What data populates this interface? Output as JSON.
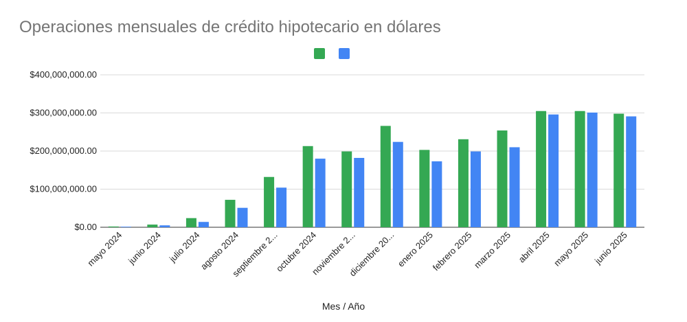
{
  "chart_data": {
    "type": "bar",
    "title": "Operaciones mensuales de crédito hipotecario en dólares",
    "xlabel": "Mes / Año",
    "ylabel": "",
    "ylim": [
      0,
      400000000
    ],
    "yticks": [
      0,
      100000000,
      200000000,
      300000000,
      400000000
    ],
    "ytick_labels": [
      "$0.00",
      "$100,000,000.00",
      "$200,000,000.00",
      "$300,000,000.00",
      "$400,000,000.00"
    ],
    "grid": true,
    "legend_position": "top-center",
    "categories": [
      "mayo 2024",
      "junio 2024",
      "julio 2024",
      "agosto 2024",
      "septiembre 2...",
      "octubre 2024",
      "noviembre 2...",
      "diciembre 20...",
      "enero 2025",
      "febrero 2025",
      "marzo 2025",
      "abril 2025",
      "mayo 2025",
      "junio 2025"
    ],
    "series": [
      {
        "name": "",
        "color": "#34a853",
        "values": [
          2000000,
          7000000,
          24000000,
          72000000,
          132000000,
          213000000,
          199000000,
          266000000,
          203000000,
          231000000,
          254000000,
          305000000,
          305000000,
          298000000
        ]
      },
      {
        "name": "",
        "color": "#4285f4",
        "values": [
          1500000,
          5000000,
          14000000,
          51000000,
          104000000,
          180000000,
          182000000,
          224000000,
          173000000,
          199000000,
          210000000,
          296000000,
          301000000,
          291000000
        ]
      }
    ]
  }
}
